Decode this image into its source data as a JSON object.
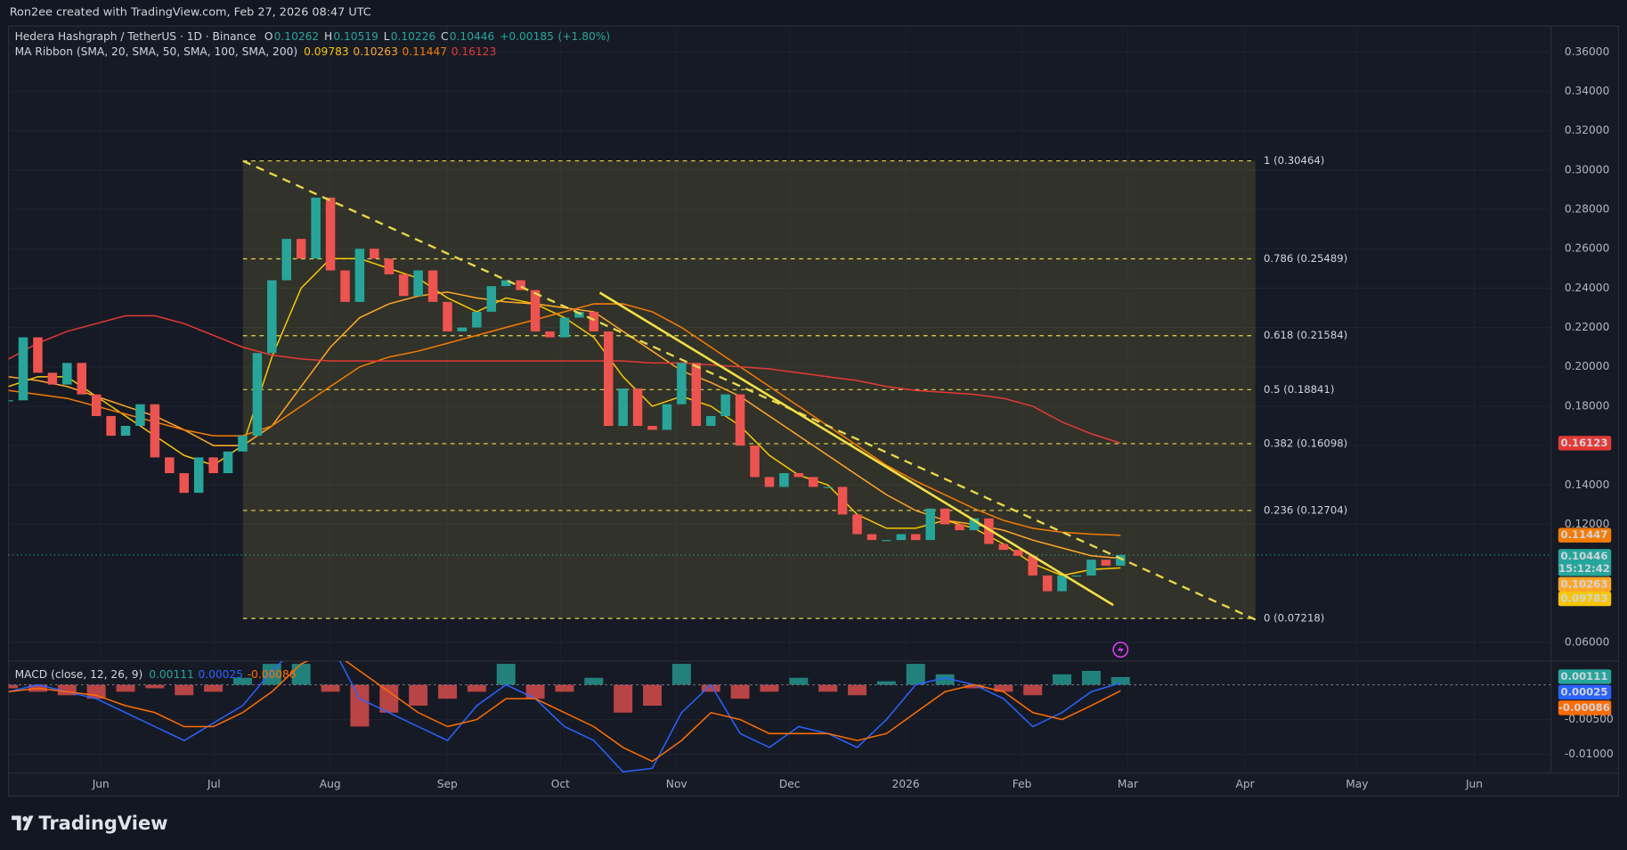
{
  "header": {
    "credit": "Ron2ee created with TradingView.com, Feb 27, 2026 08:47 UTC"
  },
  "footer": {
    "brand": "TradingView"
  },
  "chart_data": [
    {
      "type": "candlestick",
      "title": "Hedera Hashgraph / TetherUS · 1D · Binance",
      "ohlc": [
        {
          "label": "O",
          "value": 0.10262
        },
        {
          "label": "H",
          "value": 0.10519
        },
        {
          "label": "L",
          "value": 0.10226
        },
        {
          "label": "C",
          "value": 0.10446
        }
      ],
      "change": {
        "value": 0.00185,
        "label": "+0.00185"
      },
      "change_pct": {
        "value": 1.8,
        "label": "(+1.80%)"
      },
      "countdown": "15:12:42",
      "up_color": "#26a69a",
      "down_color": "#ef5350",
      "close": [
        0.183,
        0.215,
        0.197,
        0.191,
        0.202,
        0.186,
        0.175,
        0.165,
        0.17,
        0.181,
        0.154,
        0.146,
        0.136,
        0.154,
        0.146,
        0.157,
        0.165,
        0.207,
        0.244,
        0.265,
        0.255,
        0.286,
        0.249,
        0.233,
        0.26,
        0.255,
        0.247,
        0.236,
        0.249,
        0.233,
        0.218,
        0.22,
        0.228,
        0.241,
        0.244,
        0.239,
        0.218,
        0.215,
        0.225,
        0.228,
        0.218,
        0.17,
        0.189,
        0.17,
        0.168,
        0.181,
        0.202,
        0.17,
        0.175,
        0.186,
        0.16,
        0.144,
        0.139,
        0.146,
        0.144,
        0.139,
        0.139,
        0.125,
        0.115,
        0.112,
        0.112,
        0.115,
        0.112,
        0.128,
        0.12,
        0.117,
        0.123,
        0.11,
        0.107,
        0.104,
        0.094,
        0.086,
        0.094,
        0.094,
        0.102,
        0.099,
        0.10446
      ],
      "ma_ribbon": {
        "title": "MA Ribbon (SMA, 20, SMA, 50, SMA, 100, SMA, 200)",
        "series": [
          {
            "color": "#f7c600",
            "values": [
              0.19,
              0.195,
              0.195,
              0.185,
              0.175,
              0.165,
              0.155,
              0.15,
              0.16,
              0.205,
              0.24,
              0.255,
              0.255,
              0.25,
              0.245,
              0.235,
              0.228,
              0.235,
              0.232,
              0.225,
              0.215,
              0.195,
              0.18,
              0.185,
              0.18,
              0.17,
              0.155,
              0.145,
              0.14,
              0.125,
              0.118,
              0.118,
              0.122,
              0.118,
              0.11,
              0.1,
              0.094,
              0.097,
              0.09783
            ]
          },
          {
            "color": "#ffa726",
            "values": [
              0.195,
              0.193,
              0.19,
              0.185,
              0.18,
              0.175,
              0.168,
              0.16,
              0.16,
              0.17,
              0.19,
              0.21,
              0.225,
              0.232,
              0.236,
              0.238,
              0.235,
              0.233,
              0.232,
              0.23,
              0.228,
              0.218,
              0.208,
              0.198,
              0.192,
              0.185,
              0.175,
              0.165,
              0.155,
              0.145,
              0.135,
              0.127,
              0.122,
              0.12,
              0.117,
              0.112,
              0.108,
              0.104,
              0.10263
            ]
          },
          {
            "color": "#f57c00",
            "values": [
              0.188,
              0.186,
              0.184,
              0.18,
              0.176,
              0.172,
              0.168,
              0.165,
              0.165,
              0.17,
              0.18,
              0.19,
              0.2,
              0.205,
              0.208,
              0.212,
              0.216,
              0.22,
              0.224,
              0.228,
              0.232,
              0.232,
              0.228,
              0.22,
              0.21,
              0.2,
              0.19,
              0.18,
              0.17,
              0.16,
              0.15,
              0.142,
              0.135,
              0.128,
              0.122,
              0.118,
              0.116,
              0.115,
              0.11447
            ]
          },
          {
            "color": "#e53935",
            "values": [
              0.204,
              0.212,
              0.218,
              0.222,
              0.226,
              0.226,
              0.222,
              0.216,
              0.21,
              0.206,
              0.204,
              0.203,
              0.203,
              0.203,
              0.203,
              0.203,
              0.203,
              0.203,
              0.203,
              0.203,
              0.203,
              0.203,
              0.202,
              0.202,
              0.201,
              0.2,
              0.199,
              0.197,
              0.195,
              0.193,
              0.19,
              0.188,
              0.187,
              0.186,
              0.184,
              0.18,
              0.172,
              0.166,
              0.16123
            ]
          }
        ]
      },
      "fib_color": "#e8d84a",
      "fib_levels": [
        {
          "value": 0.30464,
          "label": "1 (0.30464)"
        },
        {
          "value": 0.25489,
          "label": "0.786 (0.25489)"
        },
        {
          "value": 0.21584,
          "label": "0.618 (0.21584)"
        },
        {
          "value": 0.18841,
          "label": "0.5 (0.18841)"
        },
        {
          "value": 0.16098,
          "label": "0.382 (0.16098)"
        },
        {
          "value": 0.12704,
          "label": "0.236 (0.12704)"
        },
        {
          "value": 0.07218,
          "label": "0 (0.07218)"
        }
      ],
      "categories": [
        "Jun",
        "Jul",
        "Aug",
        "Sep",
        "Oct",
        "Nov",
        "Dec",
        "2026",
        "Feb",
        "Mar",
        "Apr",
        "May",
        "Jun"
      ],
      "ylim": [
        0.0505,
        0.3732
      ],
      "yticks": [
        {
          "value": 0.36,
          "label": "0.36000"
        },
        {
          "value": 0.34,
          "label": "0.34000"
        },
        {
          "value": 0.32,
          "label": "0.32000"
        },
        {
          "value": 0.3,
          "label": "0.30000"
        },
        {
          "value": 0.28,
          "label": "0.28000"
        },
        {
          "value": 0.26,
          "label": "0.26000"
        },
        {
          "value": 0.24,
          "label": "0.24000"
        },
        {
          "value": 0.22,
          "label": "0.22000"
        },
        {
          "value": 0.2,
          "label": "0.20000"
        },
        {
          "value": 0.18,
          "label": "0.18000"
        },
        {
          "value": 0.16,
          "label": "0.16000"
        },
        {
          "value": 0.14,
          "label": "0.14000"
        },
        {
          "value": 0.12,
          "label": "0.12000"
        },
        {
          "value": 0.06,
          "label": "0.06000"
        }
      ],
      "grid": true
    },
    {
      "type": "macd",
      "title": "MACD (close, 12, 26, 9)",
      "histogram": {
        "up_color": "#26a69a",
        "down_color": "#ef5350",
        "values": [
          -0.0005,
          -0.001,
          -0.0015,
          -0.002,
          -0.001,
          -0.0005,
          -0.0015,
          -0.001,
          0.001,
          0.003,
          0.003,
          -0.001,
          -0.006,
          -0.004,
          -0.003,
          -0.002,
          -0.001,
          0.003,
          -0.002,
          -0.001,
          0.001,
          -0.004,
          -0.003,
          0.003,
          -0.001,
          -0.002,
          -0.001,
          0.001,
          -0.001,
          -0.0015,
          0.0005,
          0.003,
          0.0015,
          -0.0005,
          -0.001,
          -0.0015,
          0.0015,
          0.002,
          0.00111
        ]
      },
      "series": [
        {
          "color": "#2962ff",
          "values": [
            -0.001,
            0.0,
            -0.001,
            -0.002,
            -0.004,
            -0.006,
            -0.008,
            -0.0055,
            -0.003,
            0.002,
            0.006,
            0.006,
            -0.002,
            -0.004,
            -0.006,
            -0.008,
            -0.003,
            0.0,
            -0.002,
            -0.006,
            -0.008,
            -0.0125,
            -0.012,
            -0.004,
            0.0,
            -0.007,
            -0.009,
            -0.006,
            -0.007,
            -0.009,
            -0.005,
            0.0,
            0.001,
            0.0,
            -0.002,
            -0.006,
            -0.004,
            -0.001,
            0.00025
          ]
        },
        {
          "color": "#ff6d00",
          "values": [
            -0.001,
            -0.0005,
            -0.001,
            -0.0015,
            -0.003,
            -0.004,
            -0.006,
            -0.006,
            -0.004,
            -0.001,
            0.003,
            0.005,
            0.002,
            -0.001,
            -0.004,
            -0.006,
            -0.005,
            -0.002,
            -0.002,
            -0.004,
            -0.006,
            -0.009,
            -0.011,
            -0.008,
            -0.004,
            -0.005,
            -0.007,
            -0.007,
            -0.007,
            -0.008,
            -0.007,
            -0.004,
            -0.001,
            0.0,
            -0.001,
            -0.004,
            -0.005,
            -0.003,
            -0.00086
          ]
        }
      ],
      "ylim": [
        -0.0127,
        0.0034
      ],
      "yticks": [
        {
          "value": -0.005,
          "label": "-0.00500"
        },
        {
          "value": -0.01,
          "label": "-0.01000"
        }
      ],
      "grid": true
    }
  ]
}
